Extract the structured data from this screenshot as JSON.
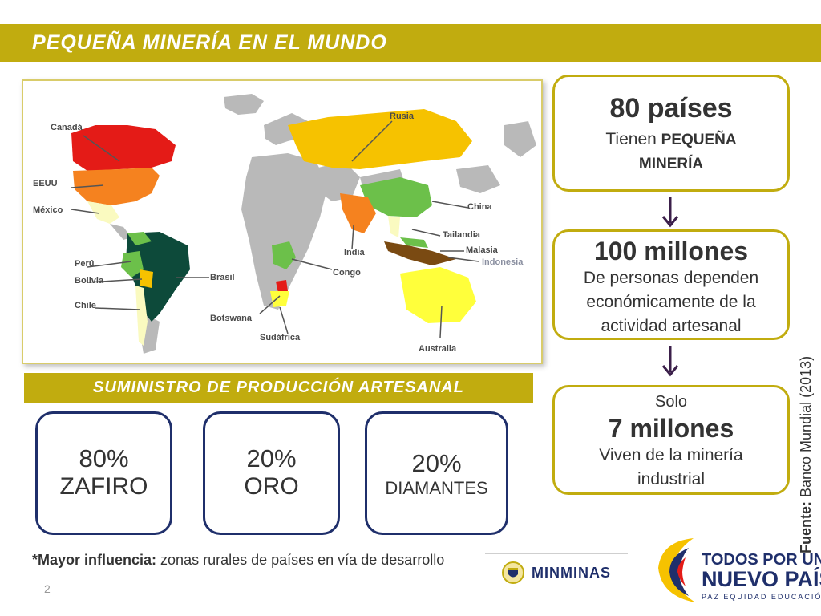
{
  "header": {
    "title": "PEQUEÑA MINERÍA EN EL MUNDO"
  },
  "map": {
    "labels": {
      "canada": "Canadá",
      "eeuu": "EEUU",
      "mexico": "México",
      "peru": "Perú",
      "bolivia": "Bolivia",
      "chile": "Chile",
      "brasil": "Brasil",
      "botswana": "Botswana",
      "sudafrica": "Sudáfrica",
      "congo": "Congo",
      "india": "India",
      "rusia": "Rusia",
      "china": "China",
      "tailandia": "Tailandia",
      "malasia": "Malasia",
      "indonesia": "Indonesia",
      "australia": "Australia"
    },
    "colors": {
      "red": "#e41b17",
      "orange": "#f5821f",
      "gold": "#f6c200",
      "yellow": "#ffff3b",
      "lightyellow": "#fafac0",
      "lightgreen": "#6cc04a",
      "darkgreen": "#0d4a3a",
      "brown": "#7a4a12",
      "grey": "#b9b9b9"
    }
  },
  "section": {
    "title": "SUMINISTRO DE PRODUCCIÓN ARTESANAL"
  },
  "stats": [
    {
      "pct": "80%",
      "name": "ZAFIRO"
    },
    {
      "pct": "20%",
      "name": "ORO"
    },
    {
      "pct": "20%",
      "name": "DIAMANTES"
    }
  ],
  "info": {
    "box1": {
      "big": "80 países",
      "line1_prefix": "Tienen",
      "line1_bold": "PEQUEÑA",
      "line2_bold": "MINERÍA"
    },
    "box2": {
      "big": "100 millones",
      "line1": "De personas dependen",
      "line2": "económicamente de la",
      "line3": "actividad artesanal"
    },
    "box3": {
      "pre": "Solo",
      "big": "7 millones",
      "line1": "Viven de la minería",
      "line2": "industrial"
    }
  },
  "source": {
    "label": "Fuente:",
    "text": "Banco Mundial (2013)"
  },
  "footnote": {
    "bold": "*Mayor influencia:",
    "text": "zonas rurales de países en vía de desarrollo"
  },
  "page_number": "2",
  "logos": {
    "minminas": "MINMINAS",
    "todos_line1": "TODOS POR UN",
    "todos_line2": "NUEVO PAÍS",
    "todos_line3": "PAZ EQUIDAD EDUCACIÓN"
  },
  "accent_colors": {
    "olive": "#c1ac0f",
    "navy": "#1f2f6b",
    "arrow": "#3b1f4a"
  }
}
